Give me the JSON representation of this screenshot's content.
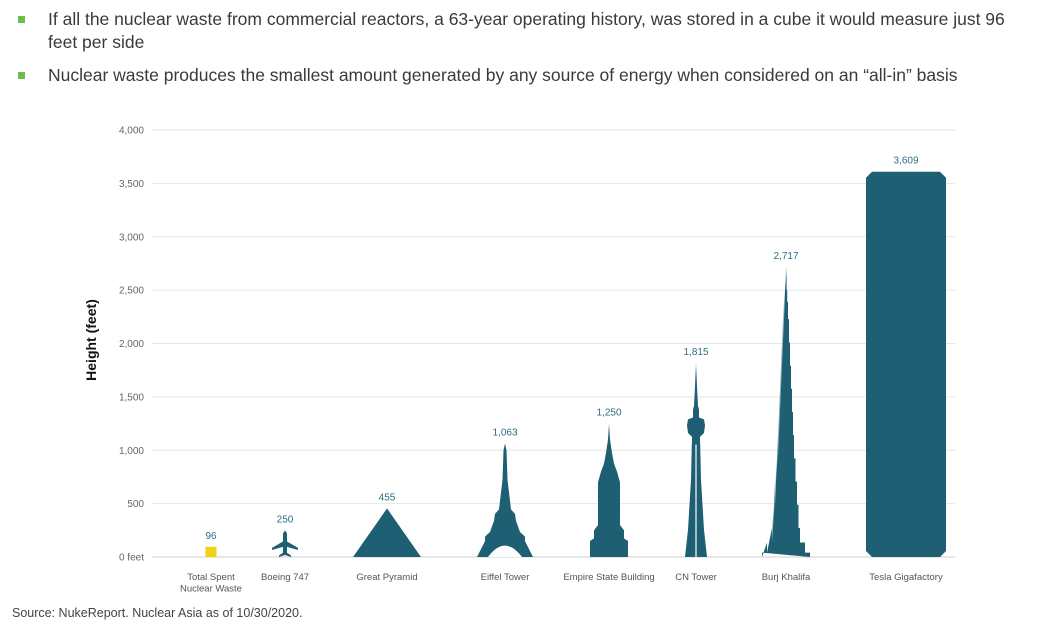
{
  "bullets": [
    "If all the nuclear waste from commercial reactors, a 63-year operating history, was stored in a cube it would measure just 96 feet per side",
    "Nuclear waste produces the smallest amount generated by any source of energy when considered on an “all-in” basis"
  ],
  "source": "Source: NukeReport. Nuclear Asia as of 10/30/2020.",
  "colors": {
    "bar": "#1e5f74",
    "waste": "#f2d214",
    "bullet": "#6abf4b",
    "grid": "#e6e6e6"
  },
  "chart_data": {
    "type": "bar",
    "ylabel": "Height (feet)",
    "ylim": [
      0,
      4000
    ],
    "yticks": [
      "0 feet",
      "500",
      "1,000",
      "1,500",
      "2,000",
      "2,500",
      "3,000",
      "3,500",
      "4,000"
    ],
    "grid": true,
    "categories": [
      [
        "Total Spent",
        "Nuclear Waste"
      ],
      [
        "Boeing 747"
      ],
      [
        "Great Pyramid"
      ],
      [
        "Eiffel Tower"
      ],
      [
        "Empire State Building"
      ],
      [
        "CN Tower"
      ],
      [
        "Burj Khalifa"
      ],
      [
        "Tesla Gigafactory"
      ]
    ],
    "values": [
      96,
      250,
      455,
      1063,
      1250,
      1815,
      2717,
      3609
    ],
    "value_labels": [
      "96",
      "250",
      "455",
      "1,063",
      "1,250",
      "1,815",
      "2,717",
      "3,609"
    ],
    "shapes": [
      "cube",
      "airplane",
      "pyramid",
      "eiffel",
      "empire",
      "cn",
      "burj",
      "gigafactory"
    ]
  }
}
